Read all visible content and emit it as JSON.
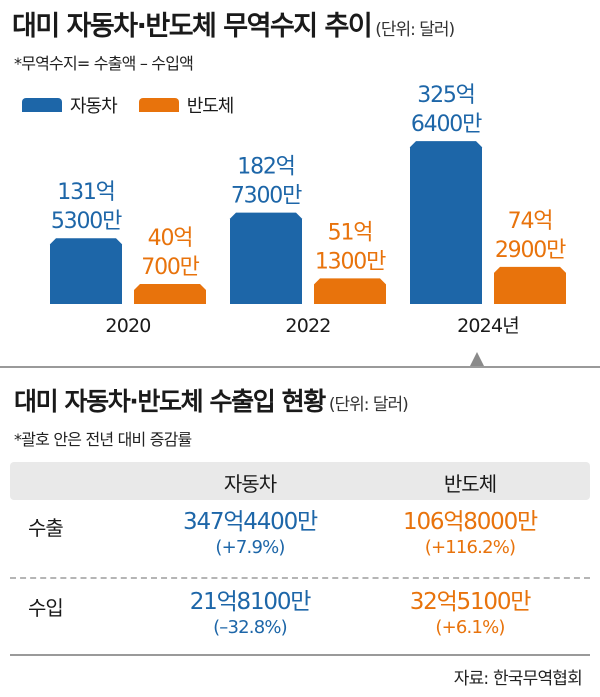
{
  "header": {
    "title": "대미 자동차·반도체 무역수지 추이",
    "unit": "(단위: 달러)",
    "note": "*무역수지= 수출액 – 수입액"
  },
  "colors": {
    "auto": "#1d66a8",
    "semi": "#e8730c"
  },
  "chart_data": {
    "type": "bar",
    "categories": [
      "2020",
      "2022",
      "2024년"
    ],
    "series": [
      {
        "name": "자동차",
        "values": [
          131.53,
          182.73,
          325.64
        ],
        "labels": [
          [
            "131억",
            "5300만"
          ],
          [
            "182억",
            "7300만"
          ],
          [
            "325억",
            "6400만"
          ]
        ]
      },
      {
        "name": "반도체",
        "values": [
          40.07,
          51.13,
          74.29
        ],
        "labels": [
          [
            "40억",
            "700만"
          ],
          [
            "51억",
            "1300만"
          ],
          [
            "74억",
            "2900만"
          ]
        ]
      }
    ],
    "ylim": [
      0,
      340
    ]
  },
  "table": {
    "title": "대미 자동차·반도체 수출입 현황",
    "unit": "(단위: 달러)",
    "note": "*괄호 안은 전년 대비 증감률",
    "columns": [
      "자동차",
      "반도체"
    ],
    "rows": [
      {
        "label": "수출",
        "auto_value": "347억4400만",
        "auto_change": "(+7.9%)",
        "semi_value": "106억8000만",
        "semi_change": "(+116.2%)"
      },
      {
        "label": "수입",
        "auto_value": "21억8100만",
        "auto_change": "(–32.8%)",
        "semi_value": "32억5100만",
        "semi_change": "(+6.1%)"
      }
    ]
  },
  "source": "자료: 한국무역협회"
}
